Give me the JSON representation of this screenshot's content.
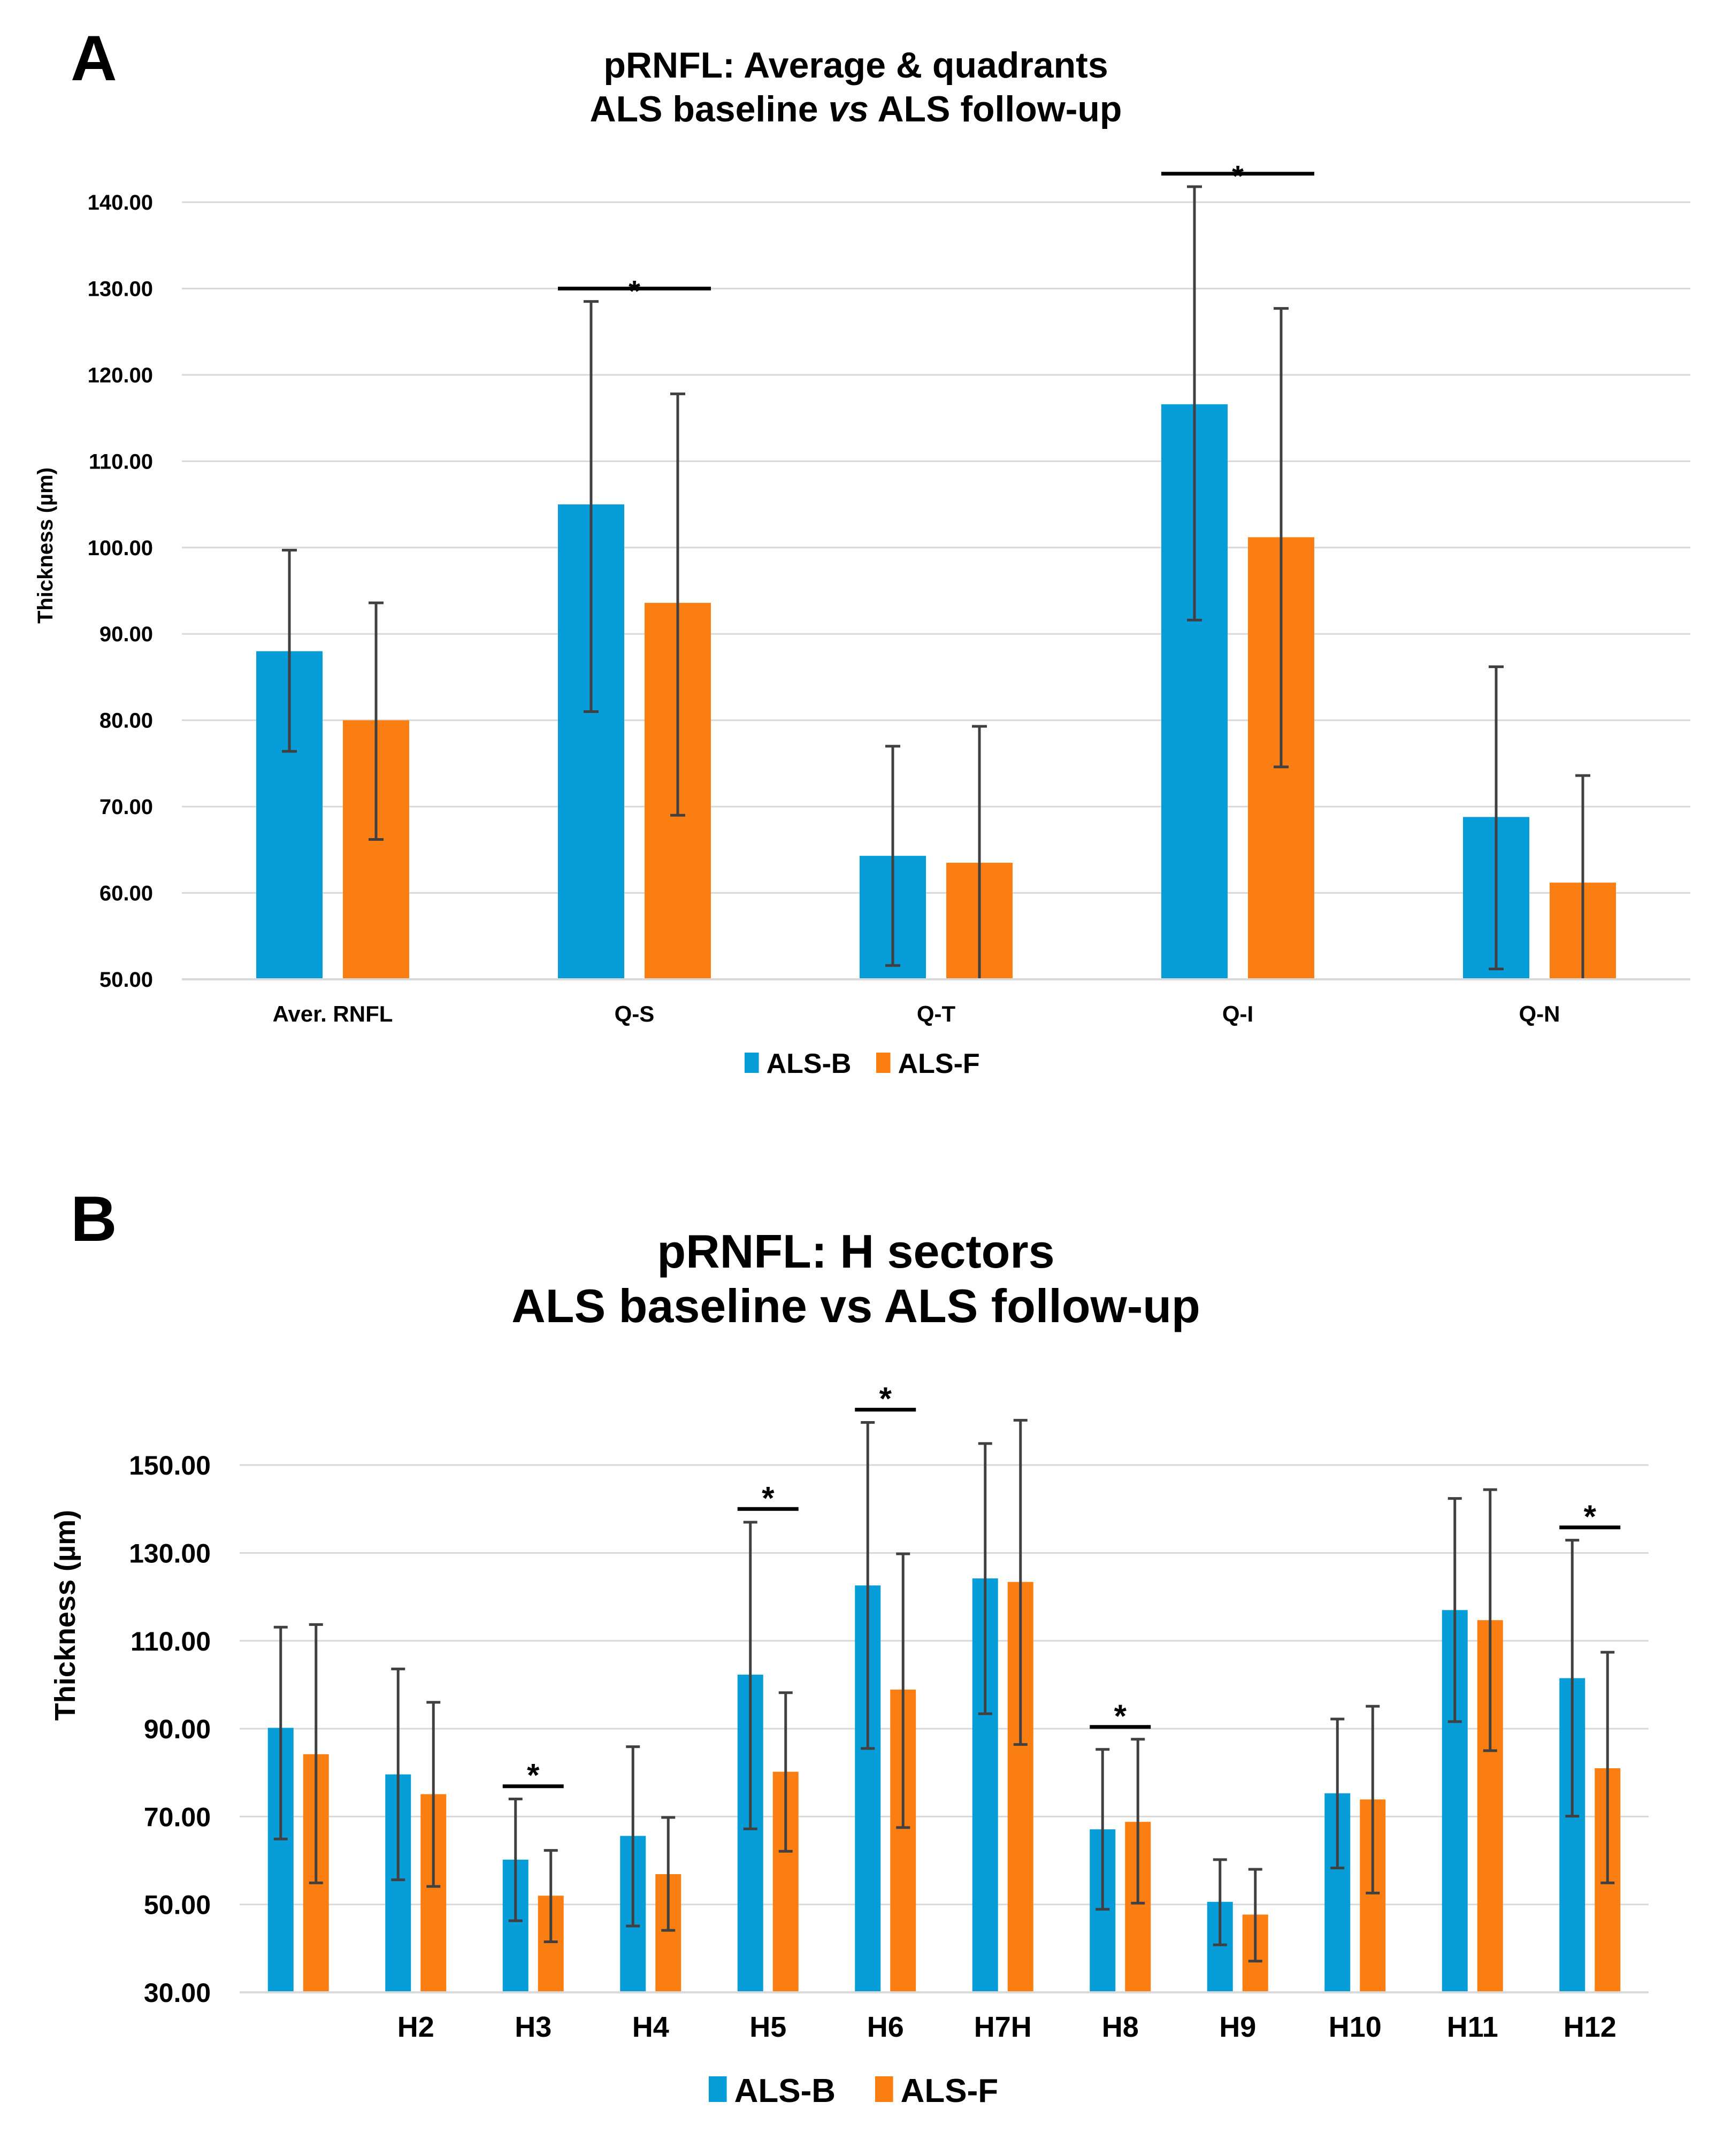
{
  "colors": {
    "als_b": "#069DD9",
    "als_f": "#FB7E13",
    "grid": "#D9D9D9",
    "error_bar": "#404040",
    "sig_line": "#000000"
  },
  "panels": [
    {
      "letter": "A"
    },
    {
      "letter": "B"
    }
  ],
  "chart_data": [
    {
      "type": "bar",
      "title": [
        "pRNFL: Average & quadrants",
        "ALS baseline vs ALS follow-up"
      ],
      "title_vs_italic": true,
      "xlabel": "",
      "ylabel": "Thickness (µm)",
      "ylim": [
        50,
        140
      ],
      "yticks": [
        50,
        60,
        70,
        80,
        90,
        100,
        110,
        120,
        130,
        140
      ],
      "ytick_labels": [
        "50.00",
        "60.00",
        "70.00",
        "80.00",
        "90.00",
        "100.00",
        "110.00",
        "120.00",
        "130.00",
        "140.00"
      ],
      "grid": true,
      "legend": "bottom-center",
      "categories": [
        "Aver. RNFL",
        "Q-S",
        "Q-T",
        "Q-I",
        "Q-N"
      ],
      "series": [
        {
          "name": "ALS-B",
          "values": [
            88,
            105,
            64.3,
            116.6,
            68.8
          ],
          "err_low": [
            76.4,
            81,
            51.6,
            91.6,
            51.2
          ],
          "err_high": [
            99.7,
            128.5,
            77,
            141.8,
            86.2
          ]
        },
        {
          "name": "ALS-F",
          "values": [
            80,
            93.6,
            63.5,
            101.2,
            61.2
          ],
          "err_low": [
            66.2,
            69,
            50,
            74.6,
            50
          ],
          "err_high": [
            93.6,
            117.8,
            79.3,
            127.7,
            73.6
          ]
        }
      ],
      "significance": [
        {
          "category": "Q-S",
          "label": "*",
          "y": 130
        },
        {
          "category": "Q-I",
          "label": "*",
          "y": 143.3
        }
      ]
    },
    {
      "type": "bar",
      "title": [
        "pRNFL: H sectors",
        "ALS baseline vs ALS follow-up"
      ],
      "title_vs_italic": false,
      "xlabel": "",
      "ylabel": "Thickness (µm)",
      "ylim": [
        30,
        160
      ],
      "yticks": [
        30,
        50,
        70,
        90,
        110,
        130,
        150
      ],
      "ytick_labels": [
        "30.00",
        "50.00",
        "70.00",
        "90.00",
        "110.00",
        "130.00",
        "150.00"
      ],
      "grid": true,
      "legend": "bottom-center",
      "categories": [
        "",
        "H2",
        "H3",
        "H4",
        "H5",
        "H6",
        "H7H",
        "H8",
        "H9",
        "H10",
        "H11",
        "H12"
      ],
      "series": [
        {
          "name": "ALS-B",
          "values": [
            90.2,
            79.6,
            60.2,
            65.6,
            102.3,
            122.6,
            124.2,
            67.1,
            50.6,
            75.3,
            117,
            101.5
          ],
          "err_low": [
            64.9,
            55.6,
            46.3,
            45.1,
            67.2,
            85.5,
            93.4,
            48.9,
            40.8,
            58.3,
            91.6,
            70.1
          ],
          "err_high": [
            113.1,
            103.6,
            74,
            85.9,
            137,
            159.7,
            154.9,
            85.3,
            60.2,
            92.2,
            142.4,
            132.9
          ]
        },
        {
          "name": "ALS-F",
          "values": [
            84.2,
            75.1,
            52,
            56.9,
            80.2,
            98.9,
            123.4,
            68.8,
            47.7,
            73.9,
            114.7,
            81
          ],
          "err_low": [
            54.9,
            54.1,
            41.5,
            44.1,
            62.1,
            67.5,
            86.4,
            50.3,
            37.1,
            52.6,
            85,
            54.9
          ],
          "err_high": [
            113.7,
            96,
            62.3,
            69.8,
            98.2,
            129.8,
            160.2,
            87.6,
            58,
            95.1,
            144.4,
            107.4
          ]
        }
      ],
      "significance": [
        {
          "category": "H3",
          "label": "*",
          "y": 76.9
        },
        {
          "category": "H5",
          "label": "*",
          "y": 140
        },
        {
          "category": "H6",
          "label": "*",
          "y": 162.6
        },
        {
          "category": "H8",
          "label": "*",
          "y": 90.4
        },
        {
          "category": "H12",
          "label": "*",
          "y": 135.8
        }
      ]
    }
  ]
}
